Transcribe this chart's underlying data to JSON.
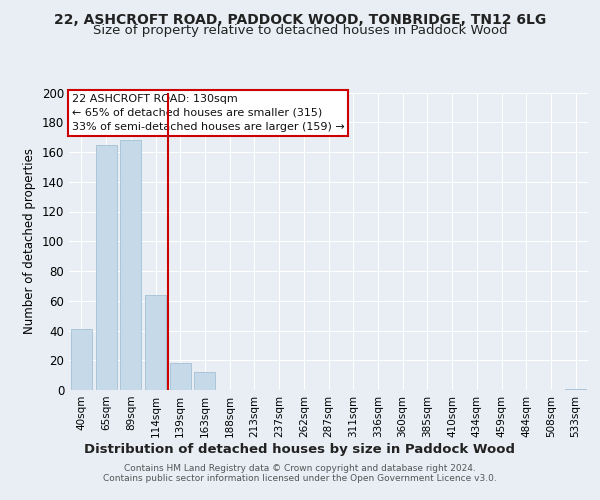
{
  "title_line1": "22, ASHCROFT ROAD, PADDOCK WOOD, TONBRIDGE, TN12 6LG",
  "title_line2": "Size of property relative to detached houses in Paddock Wood",
  "xlabel": "Distribution of detached houses by size in Paddock Wood",
  "ylabel": "Number of detached properties",
  "footer_line1": "Contains HM Land Registry data © Crown copyright and database right 2024.",
  "footer_line2": "Contains public sector information licensed under the Open Government Licence v3.0.",
  "annotation_line1": "22 ASHCROFT ROAD: 130sqm",
  "annotation_line2": "← 65% of detached houses are smaller (315)",
  "annotation_line3": "33% of semi-detached houses are larger (159) →",
  "bar_labels": [
    "40sqm",
    "65sqm",
    "89sqm",
    "114sqm",
    "139sqm",
    "163sqm",
    "188sqm",
    "213sqm",
    "237sqm",
    "262sqm",
    "287sqm",
    "311sqm",
    "336sqm",
    "360sqm",
    "385sqm",
    "410sqm",
    "434sqm",
    "459sqm",
    "484sqm",
    "508sqm",
    "533sqm"
  ],
  "bar_values": [
    41,
    165,
    168,
    64,
    18,
    12,
    0,
    0,
    0,
    0,
    0,
    0,
    0,
    0,
    0,
    0,
    0,
    0,
    0,
    0,
    1
  ],
  "bar_color": "#c6d9e8",
  "bar_edge_color": "#9ab8cf",
  "property_line_index": 3,
  "property_line_color": "#cc0000",
  "annotation_box_color": "#cc0000",
  "background_color": "#e8eef4",
  "plot_bg_color": "#e8eef4",
  "ylim": [
    0,
    200
  ],
  "yticks": [
    0,
    20,
    40,
    60,
    80,
    100,
    120,
    140,
    160,
    180,
    200
  ],
  "grid_color": "#ffffff",
  "title_fontsize": 10,
  "subtitle_fontsize": 9.5,
  "xlabel_fontsize": 9.5,
  "ylabel_fontsize": 8.5,
  "annotation_fontsize": 8.0
}
